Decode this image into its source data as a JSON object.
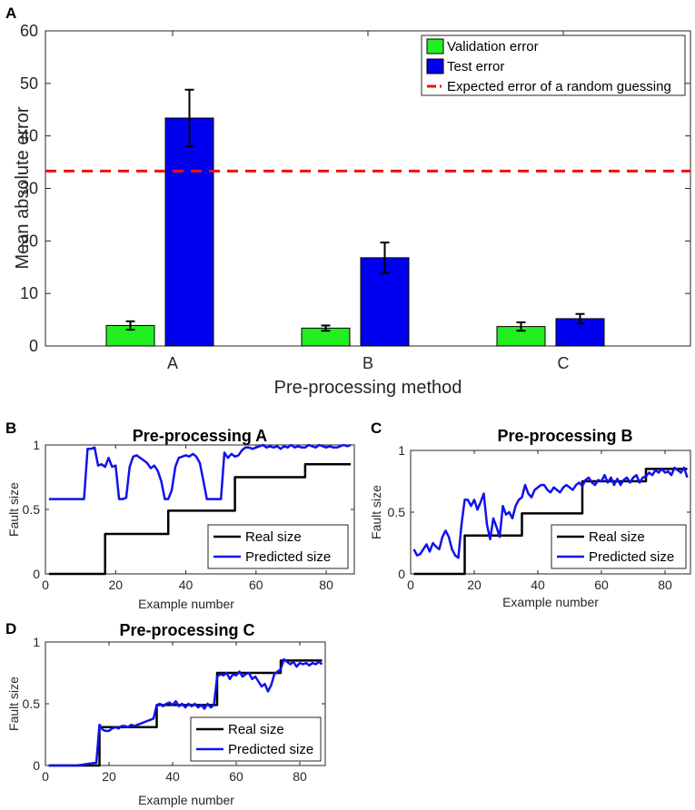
{
  "colors": {
    "validation": "#22ee22",
    "test": "#0000ee",
    "random": "#ee1111",
    "real": "#000000",
    "predicted": "#1111ee"
  },
  "chart_data": [
    {
      "panel": "A",
      "type": "bar",
      "title": "",
      "xlabel": "Pre-processing method",
      "ylabel": "Mean absolute error",
      "categories": [
        "A",
        "B",
        "C"
      ],
      "ylim": [
        0,
        60
      ],
      "yticks": [
        0,
        10,
        20,
        30,
        40,
        50,
        60
      ],
      "series": [
        {
          "name": "Validation error",
          "values": [
            3.9,
            3.4,
            3.7
          ],
          "errors": [
            0.8,
            0.5,
            0.8
          ]
        },
        {
          "name": "Test error",
          "values": [
            43.4,
            16.8,
            5.2
          ],
          "errors": [
            5.4,
            2.9,
            0.9
          ]
        }
      ],
      "reference_line": {
        "name": "Expected error of a random guessing",
        "value": 33.3
      },
      "legend": "top-right"
    },
    {
      "panel": "B",
      "type": "line",
      "title": "Pre-processing A",
      "xlabel": "Example number",
      "ylabel": "Fault size",
      "xlim": [
        0,
        88
      ],
      "ylim": [
        0,
        1
      ],
      "xticks": [
        0,
        20,
        40,
        60,
        80
      ],
      "yticks": [
        "0",
        "0.5",
        "1"
      ],
      "series": [
        {
          "name": "Real size",
          "x": [
            1,
            17,
            17,
            35,
            35,
            54,
            54,
            74,
            74,
            87
          ],
          "y": [
            0,
            0,
            0.31,
            0.31,
            0.49,
            0.49,
            0.75,
            0.75,
            0.85,
            0.85
          ]
        },
        {
          "name": "Predicted size",
          "x": [
            1,
            11,
            12,
            13,
            14,
            15,
            16,
            17,
            18,
            19,
            20,
            21,
            22,
            23,
            24,
            25,
            26,
            27,
            28,
            29,
            30,
            31,
            32,
            33,
            34,
            35,
            36,
            37,
            38,
            39,
            40,
            41,
            42,
            43,
            44,
            45,
            46,
            47,
            48,
            49,
            50,
            51,
            52,
            53,
            54,
            55,
            56,
            57,
            58,
            59,
            60,
            61,
            62,
            63,
            64,
            65,
            66,
            67,
            68,
            69,
            70,
            71,
            72,
            73,
            74,
            75,
            76,
            77,
            78,
            79,
            80,
            81,
            82,
            83,
            84,
            85,
            86,
            87
          ],
          "y": [
            0.58,
            0.58,
            0.97,
            0.97,
            0.98,
            0.84,
            0.85,
            0.83,
            0.9,
            0.83,
            0.84,
            0.58,
            0.58,
            0.59,
            0.83,
            0.91,
            0.92,
            0.9,
            0.88,
            0.86,
            0.82,
            0.84,
            0.8,
            0.72,
            0.58,
            0.58,
            0.65,
            0.83,
            0.9,
            0.91,
            0.92,
            0.91,
            0.93,
            0.91,
            0.86,
            0.72,
            0.58,
            0.58,
            0.58,
            0.58,
            0.58,
            0.94,
            0.9,
            0.93,
            0.91,
            0.92,
            0.96,
            0.98,
            0.98,
            0.97,
            0.98,
            0.99,
            1.0,
            0.98,
            0.99,
            0.98,
            0.99,
            0.97,
            0.99,
            0.98,
            1.0,
            0.98,
            0.99,
            0.98,
            0.98,
            1.0,
            0.99,
            0.98,
            1.0,
            0.99,
            0.98,
            0.99,
            0.98,
            0.98,
            0.99,
            1.0,
            0.99,
            1.0
          ]
        }
      ],
      "legend": "bottom-right"
    },
    {
      "panel": "C",
      "type": "line",
      "title": "Pre-processing B",
      "xlabel": "Example number",
      "ylabel": "Fault size",
      "xlim": [
        0,
        88
      ],
      "ylim": [
        0,
        1
      ],
      "xticks": [
        0,
        20,
        40,
        60,
        80
      ],
      "yticks": [
        "0",
        "0.5",
        "1"
      ],
      "series": [
        {
          "name": "Real size",
          "x": [
            1,
            17,
            17,
            35,
            35,
            54,
            54,
            74,
            74,
            87
          ],
          "y": [
            0,
            0,
            0.31,
            0.31,
            0.49,
            0.49,
            0.75,
            0.75,
            0.85,
            0.85
          ]
        },
        {
          "name": "Predicted size",
          "x": [
            1,
            2,
            3,
            4,
            5,
            6,
            7,
            8,
            9,
            10,
            11,
            12,
            13,
            14,
            15,
            16,
            17,
            18,
            19,
            20,
            21,
            22,
            23,
            24,
            25,
            26,
            27,
            28,
            29,
            30,
            31,
            32,
            33,
            34,
            35,
            36,
            37,
            38,
            39,
            40,
            41,
            42,
            43,
            44,
            45,
            46,
            47,
            48,
            49,
            50,
            51,
            52,
            53,
            54,
            55,
            56,
            57,
            58,
            59,
            60,
            61,
            62,
            63,
            64,
            65,
            66,
            67,
            68,
            69,
            70,
            71,
            72,
            73,
            74,
            75,
            76,
            77,
            78,
            79,
            80,
            81,
            82,
            83,
            84,
            85,
            86,
            87
          ],
          "y": [
            0.2,
            0.15,
            0.16,
            0.2,
            0.24,
            0.18,
            0.25,
            0.22,
            0.2,
            0.3,
            0.35,
            0.3,
            0.2,
            0.15,
            0.13,
            0.4,
            0.6,
            0.6,
            0.55,
            0.6,
            0.52,
            0.58,
            0.65,
            0.4,
            0.28,
            0.45,
            0.38,
            0.3,
            0.55,
            0.48,
            0.5,
            0.45,
            0.55,
            0.6,
            0.62,
            0.72,
            0.65,
            0.62,
            0.68,
            0.7,
            0.72,
            0.72,
            0.68,
            0.66,
            0.7,
            0.68,
            0.66,
            0.7,
            0.72,
            0.7,
            0.68,
            0.72,
            0.74,
            0.71,
            0.76,
            0.78,
            0.74,
            0.72,
            0.76,
            0.75,
            0.8,
            0.74,
            0.78,
            0.72,
            0.77,
            0.72,
            0.76,
            0.78,
            0.74,
            0.78,
            0.8,
            0.74,
            0.78,
            0.79,
            0.82,
            0.8,
            0.84,
            0.82,
            0.85,
            0.82,
            0.83,
            0.8,
            0.86,
            0.84,
            0.82,
            0.86,
            0.78
          ]
        }
      ],
      "legend": "bottom-right"
    },
    {
      "panel": "D",
      "type": "line",
      "title": "Pre-processing C",
      "xlabel": "Example number",
      "ylabel": "Fault size",
      "xlim": [
        0,
        88
      ],
      "ylim": [
        0,
        1
      ],
      "xticks": [
        0,
        20,
        40,
        60,
        80
      ],
      "yticks": [
        "0",
        "0.5",
        "1"
      ],
      "series": [
        {
          "name": "Real size",
          "x": [
            1,
            17,
            17,
            35,
            35,
            54,
            54,
            74,
            74,
            87
          ],
          "y": [
            0,
            0,
            0.31,
            0.31,
            0.49,
            0.49,
            0.75,
            0.75,
            0.85,
            0.85
          ]
        },
        {
          "name": "Predicted size",
          "x": [
            1,
            10,
            15,
            16,
            17,
            18,
            19,
            20,
            21,
            22,
            23,
            24,
            25,
            26,
            27,
            28,
            29,
            30,
            31,
            32,
            33,
            34,
            35,
            36,
            37,
            38,
            39,
            40,
            41,
            42,
            43,
            44,
            45,
            46,
            47,
            48,
            49,
            50,
            51,
            52,
            53,
            54,
            55,
            56,
            57,
            58,
            59,
            60,
            61,
            62,
            63,
            64,
            65,
            66,
            67,
            68,
            69,
            70,
            71,
            72,
            73,
            74,
            75,
            76,
            77,
            78,
            79,
            80,
            81,
            82,
            83,
            84,
            85,
            86,
            87
          ],
          "y": [
            0.0,
            0.0,
            0.02,
            0.02,
            0.33,
            0.29,
            0.28,
            0.28,
            0.3,
            0.31,
            0.3,
            0.32,
            0.32,
            0.31,
            0.33,
            0.32,
            0.33,
            0.34,
            0.35,
            0.36,
            0.37,
            0.38,
            0.49,
            0.5,
            0.48,
            0.5,
            0.51,
            0.49,
            0.52,
            0.48,
            0.5,
            0.47,
            0.5,
            0.48,
            0.5,
            0.47,
            0.49,
            0.46,
            0.5,
            0.47,
            0.49,
            0.72,
            0.74,
            0.73,
            0.75,
            0.7,
            0.74,
            0.73,
            0.76,
            0.72,
            0.74,
            0.75,
            0.7,
            0.72,
            0.68,
            0.64,
            0.66,
            0.6,
            0.65,
            0.74,
            0.76,
            0.78,
            0.86,
            0.84,
            0.82,
            0.84,
            0.8,
            0.83,
            0.82,
            0.83,
            0.81,
            0.83,
            0.82,
            0.84,
            0.82
          ]
        }
      ],
      "legend": "bottom-right"
    }
  ]
}
